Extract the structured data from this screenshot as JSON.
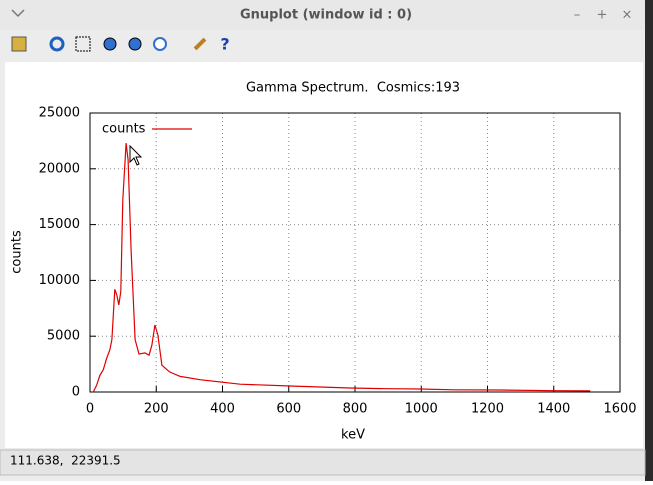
{
  "window": {
    "title": "Gnuplot (window id : 0)",
    "controls": [
      "–",
      "+",
      "×"
    ]
  },
  "toolbar": {
    "help_icon": "?"
  },
  "status": {
    "text": "111.638,  22391.5"
  },
  "chart_data": {
    "type": "line",
    "title": "Gamma Spectrum.  Cosmics:193",
    "x_label": "keV",
    "y_label": "counts",
    "x": [
      10,
      20,
      30,
      40,
      50,
      60,
      66,
      75,
      81,
      87,
      93,
      99,
      109,
      115,
      124,
      136,
      148,
      166,
      178,
      187,
      196,
      205,
      217,
      240,
      272,
      332,
      453,
      604,
      785,
      900,
      996,
      1100,
      1238,
      1400,
      1510
    ],
    "series": [
      {
        "name": "counts",
        "color": "#e00000",
        "values": [
          0,
          600,
          1500,
          2000,
          3000,
          3800,
          4700,
          9200,
          8700,
          7800,
          9000,
          17200,
          22300,
          20800,
          12700,
          4700,
          3400,
          3500,
          3300,
          4200,
          6000,
          5100,
          2400,
          1800,
          1400,
          1100,
          700,
          540,
          360,
          300,
          270,
          200,
          180,
          120,
          100
        ]
      }
    ],
    "xlim": [
      0,
      1600
    ],
    "xticks": [
      0,
      200,
      400,
      600,
      800,
      1000,
      1200,
      1400,
      1600
    ],
    "ylim": [
      0,
      25000
    ],
    "yticks": [
      0,
      5000,
      10000,
      15000,
      20000,
      25000
    ],
    "grid": true,
    "legend": "top-left"
  }
}
